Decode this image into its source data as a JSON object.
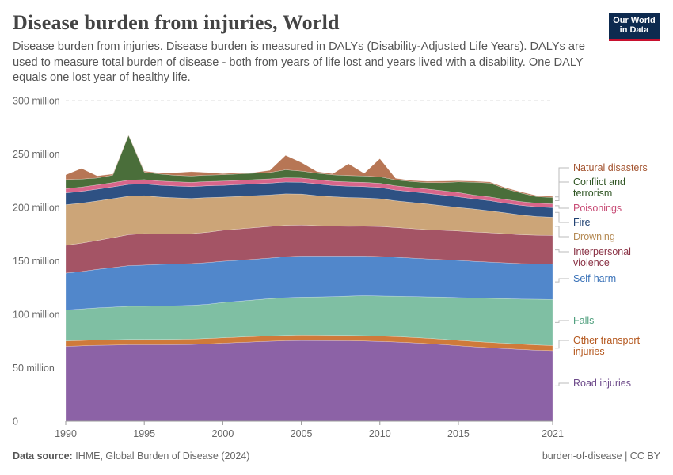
{
  "header": {
    "title": "Disease burden from injuries, World",
    "subtitle": "Disease burden from injuries. Disease burden is measured in DALYs (Disability-Adjusted Life Years). DALYs are used to measure total burden of disease - both from years of life lost and years lived with a disability. One DALY equals one lost year of healthy life.",
    "logo_line1": "Our World",
    "logo_line2": "in Data"
  },
  "footer": {
    "source_label": "Data source:",
    "source_text": "IHME, Global Burden of Disease (2024)",
    "license": "burden-of-disease | CC BY"
  },
  "chart_data": {
    "type": "area",
    "stacked": true,
    "title": "Disease burden from injuries, World",
    "x": [
      1990,
      1991,
      1992,
      1993,
      1994,
      1995,
      1996,
      1997,
      1998,
      1999,
      2000,
      2001,
      2002,
      2003,
      2004,
      2005,
      2006,
      2007,
      2008,
      2009,
      2010,
      2011,
      2012,
      2013,
      2014,
      2015,
      2016,
      2017,
      2018,
      2019,
      2020,
      2021
    ],
    "xticks": [
      1990,
      1995,
      2000,
      2005,
      2010,
      2015,
      2021
    ],
    "ylim": [
      0,
      300000000
    ],
    "yticks": [
      {
        "value": 0,
        "label": "0"
      },
      {
        "value": 50000000,
        "label": "50 million"
      },
      {
        "value": 100000000,
        "label": "100 million"
      },
      {
        "value": 150000000,
        "label": "150 million"
      },
      {
        "value": 200000000,
        "label": "200 million"
      },
      {
        "value": 250000000,
        "label": "250 million"
      },
      {
        "value": 300000000,
        "label": "300 million"
      }
    ],
    "grid": true,
    "legend": "right, labels at series end",
    "series": [
      {
        "name": "Road injuries",
        "label_lines": [
          "Road injuries"
        ],
        "color": "#8c62a6",
        "label_color": "#6d4a8a",
        "values": [
          70,
          70.5,
          71,
          71.2,
          71.5,
          71.5,
          71.5,
          71.6,
          71.8,
          72.3,
          73,
          73.6,
          74.2,
          74.8,
          75.2,
          75.5,
          75.4,
          75.3,
          75.2,
          75,
          74.6,
          74.1,
          73.4,
          72.6,
          71.7,
          70.6,
          69.6,
          68.7,
          67.9,
          67.1,
          66.4,
          66
        ]
      },
      {
        "name": "Other transport injuries",
        "label_lines": [
          "Other transport",
          "injuries"
        ],
        "color": "#cf7a3a",
        "label_color": "#b5581e",
        "values": [
          5,
          5,
          5,
          5,
          5,
          5,
          5,
          5,
          5,
          5,
          5,
          5,
          5,
          5,
          5,
          5,
          5,
          5,
          5,
          5,
          5,
          5,
          5,
          5,
          5,
          5,
          5,
          5,
          5,
          5,
          4.9,
          4.8
        ]
      },
      {
        "name": "Falls",
        "label_lines": [
          "Falls"
        ],
        "color": "#7fbfa3",
        "label_color": "#4f9f7d",
        "values": [
          29,
          29.5,
          30,
          30.5,
          31,
          31,
          31.2,
          31.4,
          31.6,
          32,
          33,
          33.6,
          34.2,
          34.8,
          35.3,
          35.5,
          35.8,
          36.2,
          36.8,
          37.4,
          37.5,
          37.8,
          38.2,
          38.7,
          39.4,
          40,
          40.6,
          41.2,
          41.7,
          42.1,
          42.8,
          43
        ]
      },
      {
        "name": "Self-harm",
        "label_lines": [
          "Self-harm"
        ],
        "color": "#5187cb",
        "label_color": "#3a72b8",
        "values": [
          34.5,
          35,
          36,
          37,
          38,
          38.5,
          39,
          39,
          39,
          39,
          38.6,
          38.3,
          38.1,
          38,
          38.4,
          38.5,
          38.3,
          38,
          37.5,
          37.1,
          37,
          36.5,
          36,
          35.5,
          35,
          34.8,
          34.3,
          33.9,
          33.5,
          33.2,
          33,
          33
        ]
      },
      {
        "name": "Interpersonal violence",
        "label_lines": [
          "Interpersonal",
          "violence"
        ],
        "color": "#a45465",
        "label_color": "#8a3245",
        "values": [
          26,
          26.5,
          27,
          28,
          29,
          29.5,
          28.5,
          28,
          28,
          28.4,
          29,
          29.3,
          29.5,
          29.6,
          29.3,
          29,
          28.5,
          28,
          27.8,
          27.9,
          28,
          27.8,
          27.6,
          27.4,
          27.5,
          27.5,
          27.5,
          27.5,
          27.3,
          27,
          26.9,
          27
        ]
      },
      {
        "name": "Drowning",
        "label_lines": [
          "Drowning"
        ],
        "color": "#cca578",
        "label_color": "#b58a54",
        "values": [
          38,
          37.5,
          37,
          36.5,
          36,
          35.5,
          34.5,
          34,
          33,
          32.5,
          31,
          30.5,
          30,
          29.5,
          29.5,
          29,
          28,
          27.5,
          27,
          26.5,
          26,
          25,
          24.5,
          24,
          23,
          22,
          21.5,
          20.5,
          19.5,
          18.5,
          17.5,
          17
        ]
      },
      {
        "name": "Fire",
        "label_lines": [
          "Fire"
        ],
        "color": "#2e5183",
        "label_color": "#1d3f70",
        "values": [
          11,
          11,
          11,
          11,
          11,
          11,
          11,
          11,
          11,
          11,
          11,
          11,
          11,
          11,
          11,
          11,
          11,
          10.5,
          10.5,
          10.5,
          10.5,
          10,
          10,
          10,
          10,
          10,
          9.5,
          9.5,
          9,
          9,
          9,
          9
        ]
      },
      {
        "name": "Poisonings",
        "label_lines": [
          "Poisonings"
        ],
        "color": "#d8668b",
        "label_color": "#c84c76",
        "values": [
          4,
          4,
          4,
          4,
          4,
          4,
          4,
          4,
          4,
          4,
          4,
          4,
          4,
          4,
          4,
          4,
          4,
          4,
          4,
          4,
          4,
          4,
          4,
          4,
          4,
          4,
          3.5,
          3.5,
          3.5,
          3.5,
          3.5,
          3.5
        ]
      },
      {
        "name": "Conflict and terrorism",
        "label_lines": [
          "Conflict and",
          "terrorism"
        ],
        "color": "#4a6e3a",
        "label_color": "#2f5523",
        "values": [
          8.5,
          7.5,
          6.5,
          7,
          42,
          7,
          6.5,
          6,
          6,
          6,
          6,
          6,
          6,
          6,
          7.5,
          6.5,
          6,
          6,
          6,
          6,
          6,
          5.5,
          5.5,
          6,
          7.5,
          10,
          12,
          13,
          10,
          8,
          6,
          6
        ]
      },
      {
        "name": "Natural disasters",
        "label_lines": [
          "Natural disasters"
        ],
        "color": "#b77655",
        "label_color": "#a3532f",
        "values": [
          4.5,
          10,
          2,
          1,
          0.5,
          1,
          1,
          2.5,
          4,
          2.5,
          1,
          1,
          0.7,
          2,
          13.5,
          8,
          1.5,
          1,
          11,
          2.5,
          17,
          1.5,
          1,
          1.2,
          1.5,
          1,
          1,
          1,
          1,
          1,
          1,
          1
        ]
      }
    ]
  }
}
